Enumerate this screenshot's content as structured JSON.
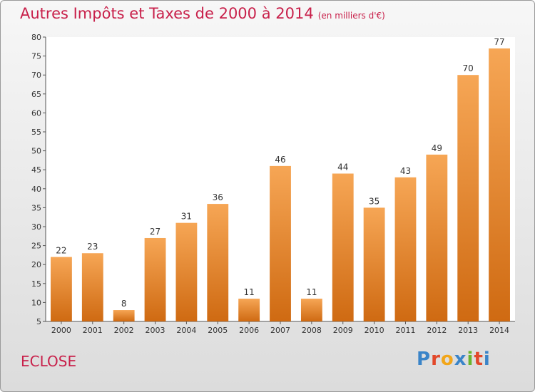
{
  "header": {
    "title": "Autres Impôts et Taxes de 2000 à 2014",
    "unit": "(en milliers d'€)"
  },
  "footer": {
    "commune": "ECLOSE",
    "logo_letters": [
      "P",
      "r",
      "o",
      "x",
      "i",
      "t",
      "i"
    ],
    "logo_colors": [
      "#3a84c8",
      "#e2482a",
      "#f2a61a",
      "#3a84c8",
      "#6ab52d",
      "#e2482a",
      "#3a84c8"
    ]
  },
  "colors": {
    "title": "#c8204a",
    "bar_top": "#f6a655",
    "bar_bottom": "#cf6a12"
  },
  "chart_data": {
    "type": "bar",
    "categories": [
      "2000",
      "2001",
      "2002",
      "2003",
      "2004",
      "2005",
      "2006",
      "2007",
      "2008",
      "2009",
      "2010",
      "2011",
      "2012",
      "2013",
      "2014"
    ],
    "values": [
      22,
      23,
      8,
      27,
      31,
      36,
      11,
      46,
      11,
      44,
      35,
      43,
      49,
      70,
      77
    ],
    "title": "Autres Impôts et Taxes de 2000 à 2014",
    "subtitle": "(en milliers d'€)",
    "xlabel": "",
    "ylabel": "",
    "ylim": [
      5,
      80
    ],
    "yticks": [
      5,
      10,
      15,
      20,
      25,
      30,
      35,
      40,
      45,
      50,
      55,
      60,
      65,
      70,
      75,
      80
    ],
    "grid": false,
    "data_labels": true
  }
}
